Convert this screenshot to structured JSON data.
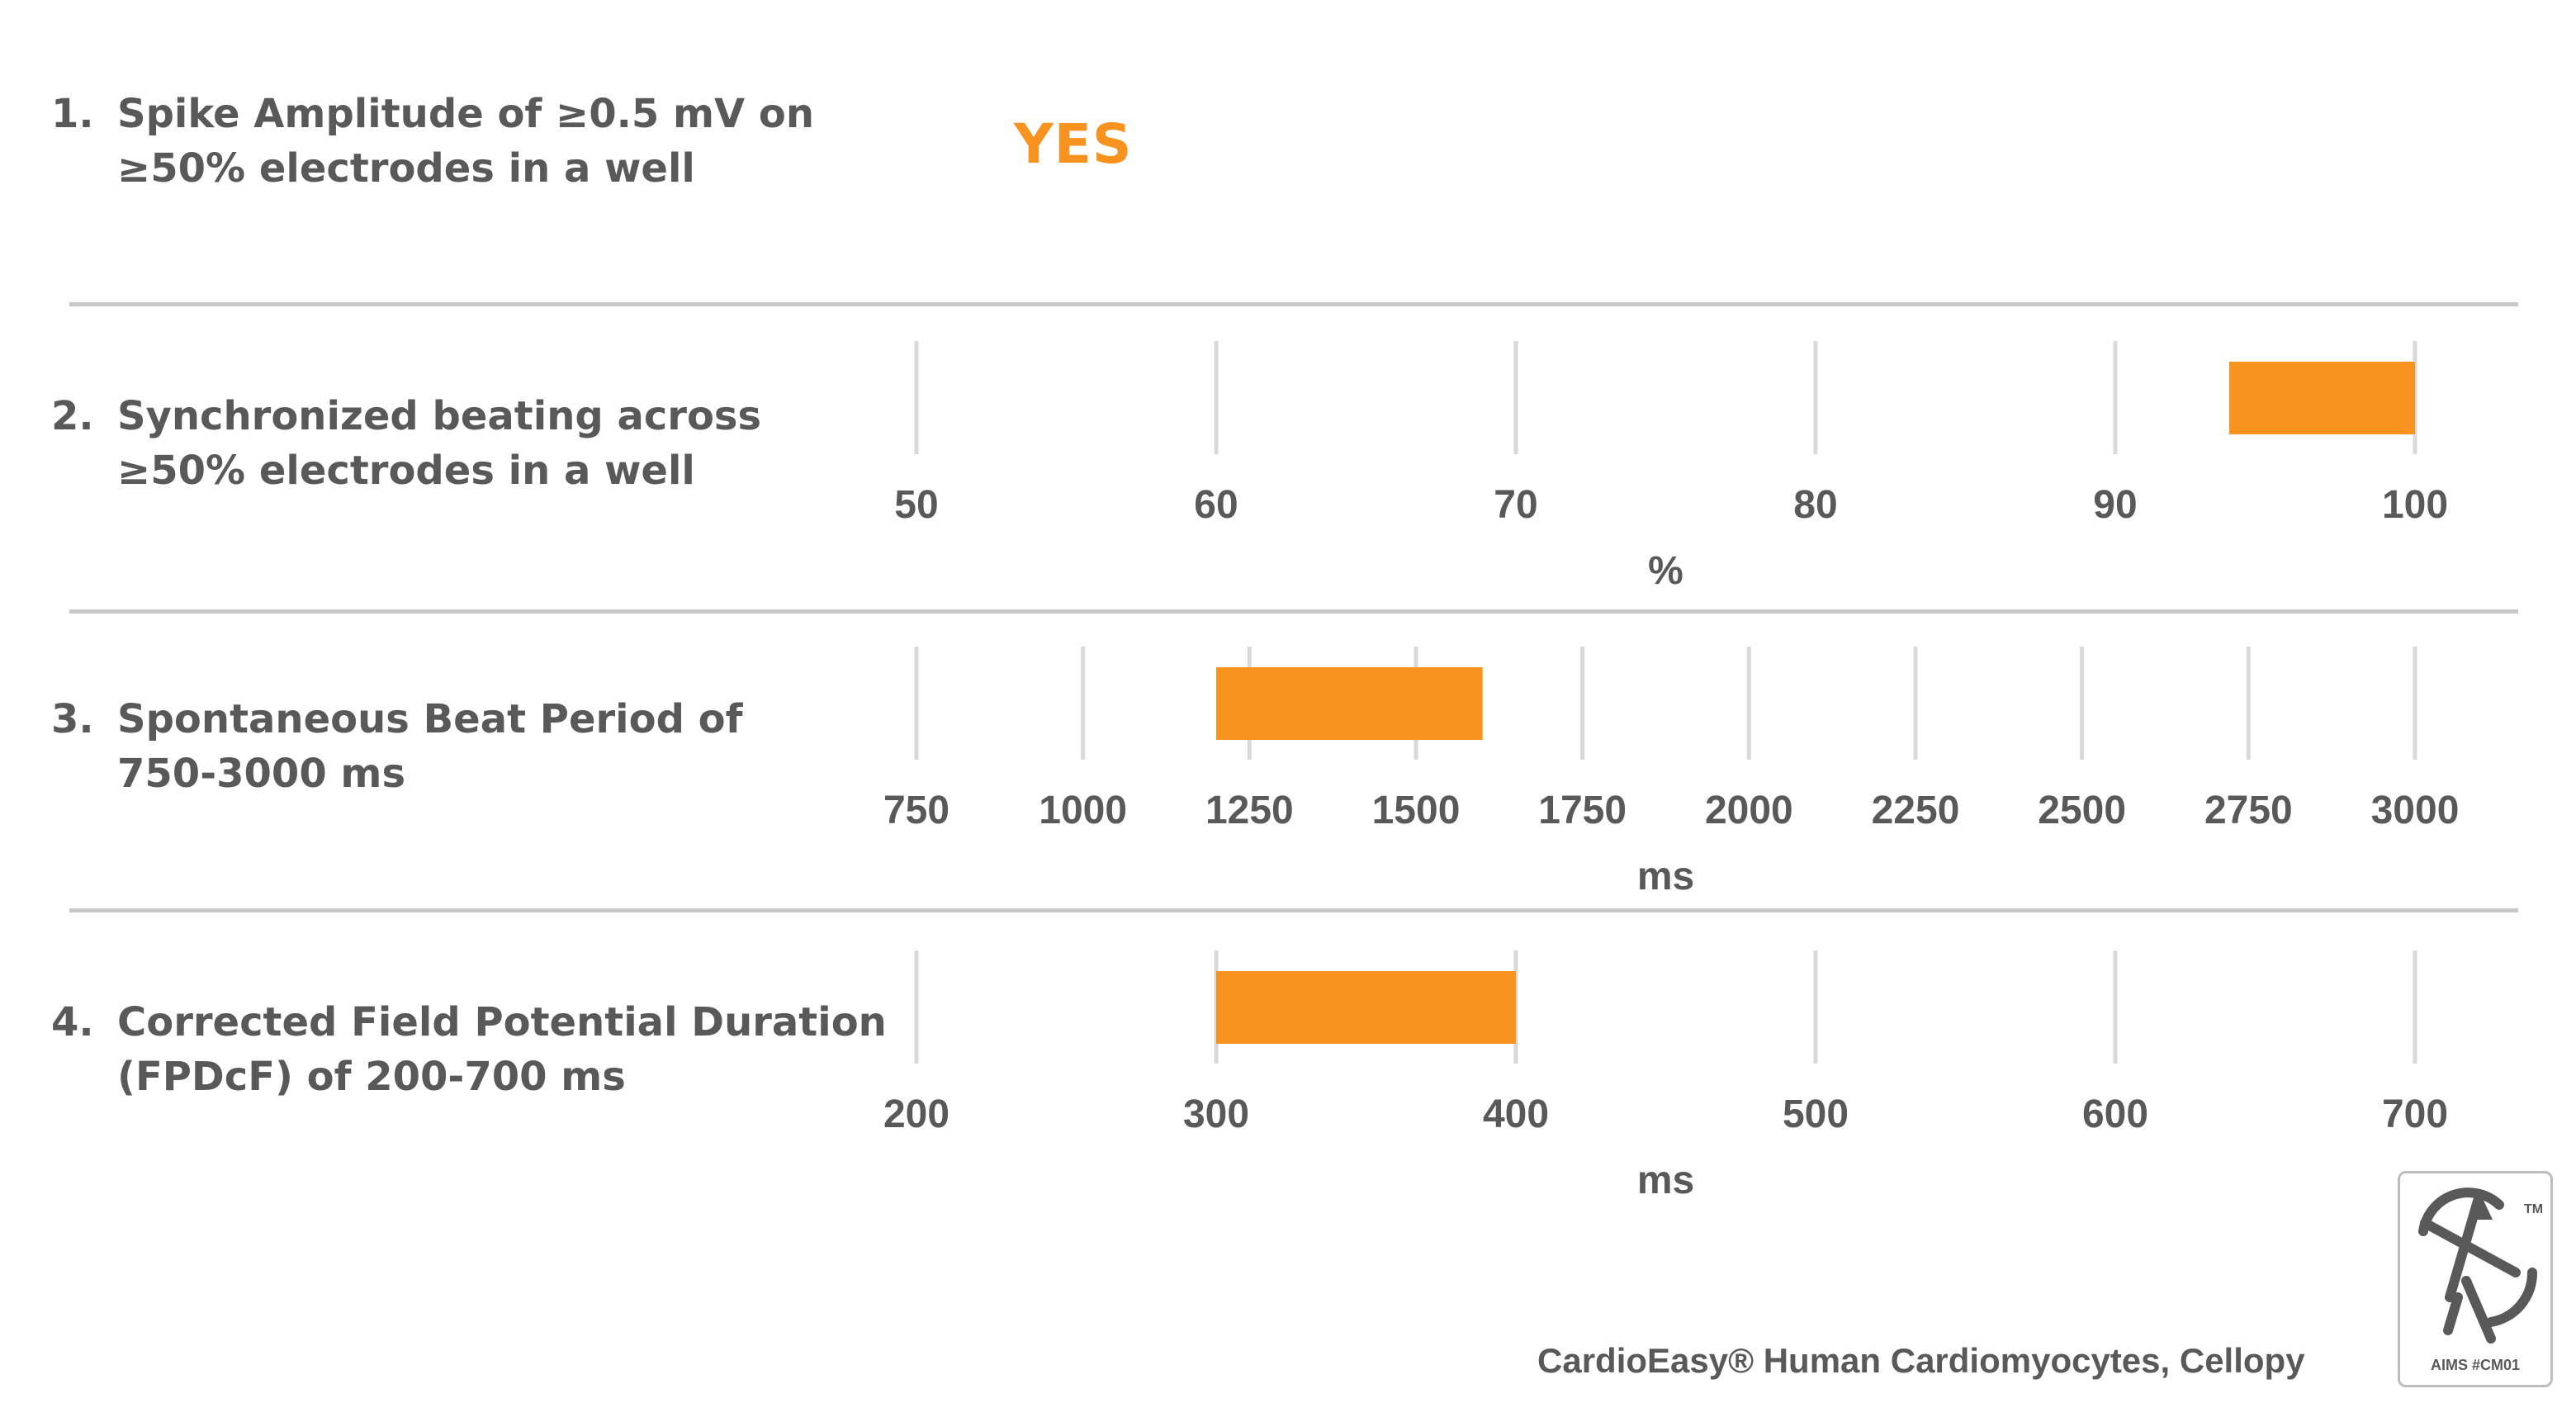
{
  "criteria": [
    {
      "number": "1.",
      "line1": "Spike Amplitude of ≥0.5 mV on",
      "line2": "≥50% electrodes in a well",
      "result": "YES"
    },
    {
      "number": "2.",
      "line1": "Synchronized beating across",
      "line2": "≥50% electrodes in a well"
    },
    {
      "number": "3.",
      "line1": "Spontaneous Beat Period of",
      "line2": "750-3000 ms"
    },
    {
      "number": "4.",
      "line1": "Corrected Field Potential Duration",
      "line2": "(FPDcF) of 200-700 ms"
    }
  ],
  "chart_data": [
    {
      "type": "bar",
      "orientation": "horizontal",
      "xlabel": "%",
      "xlim": [
        50,
        100
      ],
      "ticks": [
        50,
        60,
        70,
        80,
        90,
        100
      ],
      "range": [
        93.8,
        100
      ],
      "bar_color": "#f7931e",
      "grid": true
    },
    {
      "type": "bar",
      "orientation": "horizontal",
      "xlabel": "ms",
      "xlim": [
        750,
        3000
      ],
      "ticks": [
        750,
        1000,
        1250,
        1500,
        1750,
        2000,
        2250,
        2500,
        2750,
        3000
      ],
      "range": [
        1200,
        1600
      ],
      "bar_color": "#f7931e",
      "grid": true
    },
    {
      "type": "bar",
      "orientation": "horizontal",
      "xlabel": "ms",
      "xlim": [
        200,
        700
      ],
      "ticks": [
        200,
        300,
        400,
        500,
        600,
        700
      ],
      "range": [
        300,
        400
      ],
      "bar_color": "#f7931e",
      "grid": true
    }
  ],
  "footer": "CardioEasy® Human Cardiomyocytes, Cellopy",
  "logo": {
    "icon": "aims-logo-icon",
    "trademark": "TM",
    "caption": "AIMS #CM01"
  },
  "colors": {
    "accent": "#f7931e",
    "text": "#595959",
    "divider": "#c8c8c8",
    "grid": "#d9d9d9"
  }
}
